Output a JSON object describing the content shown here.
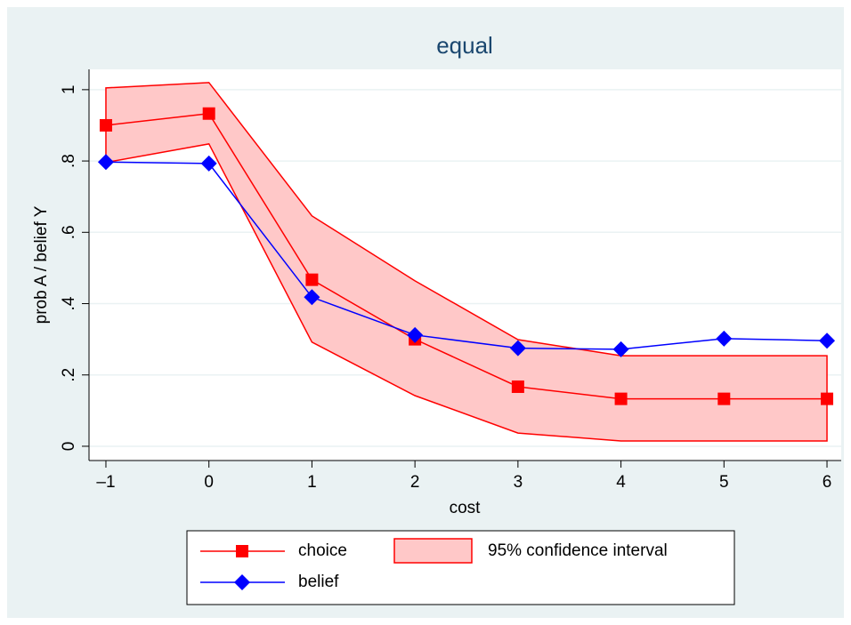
{
  "chart_data": {
    "type": "line",
    "title": "equal",
    "xlabel": "cost",
    "ylabel": "prob A / belief Y",
    "x": [
      -1,
      0,
      1,
      2,
      3,
      4,
      5,
      6
    ],
    "series": [
      {
        "name": "choice",
        "color": "#ff0000",
        "marker": "square",
        "values": [
          0.9,
          0.933,
          0.467,
          0.3,
          0.167,
          0.133,
          0.133,
          0.133
        ]
      },
      {
        "name": "belief",
        "color": "#0000ff",
        "marker": "diamond",
        "values": [
          0.797,
          0.793,
          0.418,
          0.312,
          0.275,
          0.272,
          0.302,
          0.296
        ]
      }
    ],
    "band": {
      "name": "95% confidence interval",
      "color": "#ff0000",
      "fill": "#ffc8c8",
      "upper": [
        1.005,
        1.02,
        0.646,
        0.464,
        0.299,
        0.254,
        0.254,
        0.254
      ],
      "lower": [
        0.796,
        0.848,
        0.292,
        0.142,
        0.037,
        0.015,
        0.015,
        0.015
      ]
    },
    "xlim": [
      -1.164,
      6.138
    ],
    "xticks": [
      {
        "value": -1,
        "label": "–1"
      },
      0,
      1,
      2,
      3,
      4,
      5,
      6
    ],
    "ylim": [
      -0.04,
      1.057
    ],
    "yticks": [
      0,
      {
        "value": 0.2,
        "label": ".2"
      },
      {
        "value": 0.4,
        "label": ".4"
      },
      {
        "value": 0.6,
        "label": ".6"
      },
      {
        "value": 0.8,
        "label": ".8"
      },
      1
    ],
    "grid": true
  }
}
